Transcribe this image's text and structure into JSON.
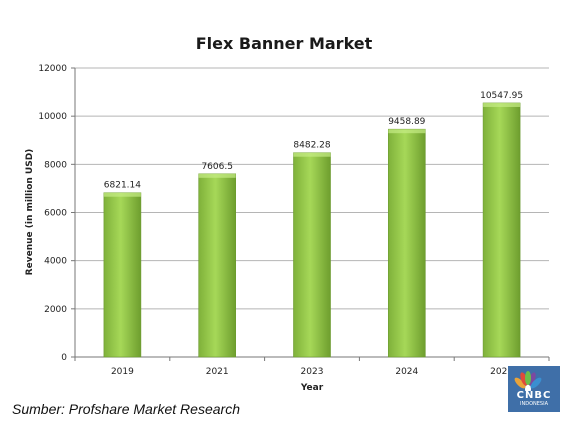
{
  "chart_data": {
    "type": "bar",
    "title": "Flex Banner Market",
    "xlabel": "Year",
    "ylabel": "Revenue (in million USD)",
    "categories": [
      "2019",
      "2021",
      "2023",
      "2024",
      "2025"
    ],
    "values": [
      6821.14,
      7606.5,
      8482.28,
      9458.89,
      10547.95
    ],
    "data_labels": [
      "6821.14",
      "7606.5",
      "8482.28",
      "9458.89",
      "10547.95"
    ],
    "ylim": [
      0,
      12000
    ],
    "yticks": [
      0,
      2000,
      4000,
      6000,
      8000,
      10000,
      12000
    ],
    "grid": true,
    "bar_color": "#8bc53f"
  },
  "source": "Sumber: Profshare Market Research",
  "logo": {
    "brand": "CNBC",
    "sub": "INDONESIA"
  }
}
